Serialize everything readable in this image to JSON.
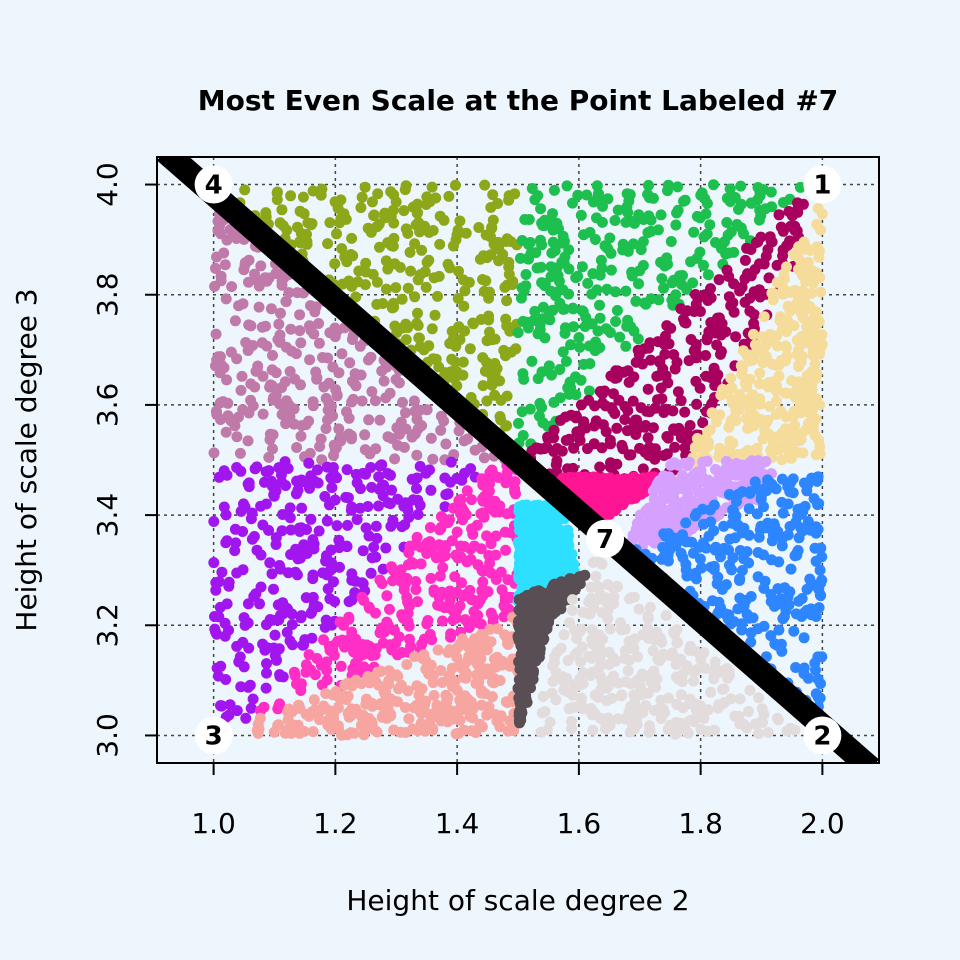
{
  "chart_data": {
    "type": "scatter",
    "title": "Most Even Scale at the Point Labeled #7",
    "xlabel": "Height of scale degree 2",
    "ylabel": "Height of scale degree 3",
    "xlim": [
      0.907,
      2.093
    ],
    "ylim": [
      2.95,
      4.05
    ],
    "x_ticks": [
      "1.0",
      "1.2",
      "1.4",
      "1.6",
      "1.8",
      "2.0"
    ],
    "x_tick_values": [
      1.0,
      1.2,
      1.4,
      1.6,
      1.8,
      2.0
    ],
    "y_ticks": [
      "3.0",
      "3.2",
      "3.4",
      "3.6",
      "3.8",
      "4.0"
    ],
    "y_tick_values": [
      3.0,
      3.2,
      3.4,
      3.6,
      3.8,
      4.0
    ],
    "grid": true,
    "diagonal_line": {
      "from": [
        0.92,
        4.06
      ],
      "to": [
        2.08,
        2.94
      ],
      "color": "#000000"
    },
    "labeled_points": [
      {
        "label": "1",
        "x": 2.0,
        "y": 4.0
      },
      {
        "label": "2",
        "x": 2.0,
        "y": 3.0
      },
      {
        "label": "3",
        "x": 1.0,
        "y": 3.0
      },
      {
        "label": "4",
        "x": 1.0,
        "y": 4.0
      },
      {
        "label": "7",
        "x": 1.643,
        "y": 3.357
      }
    ],
    "regions": [
      {
        "color": "#8ca81a",
        "polygon": [
          [
            1.0,
            4.0
          ],
          [
            1.5,
            4.0
          ],
          [
            1.5,
            3.5
          ]
        ]
      },
      {
        "color": "#1dbf4f",
        "polygon": [
          [
            1.5,
            4.0
          ],
          [
            1.98,
            4.0
          ],
          [
            1.5,
            3.5
          ]
        ]
      },
      {
        "color": "#a8005f",
        "polygon": [
          [
            1.98,
            4.0
          ],
          [
            1.5,
            3.5
          ],
          [
            1.58,
            3.45
          ],
          [
            1.75,
            3.45
          ],
          [
            1.98,
            3.9
          ]
        ]
      },
      {
        "color": "#f5dc9b",
        "polygon": [
          [
            2.0,
            3.98
          ],
          [
            2.0,
            3.5
          ],
          [
            1.8,
            3.5
          ],
          [
            1.75,
            3.45
          ]
        ]
      },
      {
        "color": "#ff1493",
        "polygon": [
          [
            1.57,
            3.47
          ],
          [
            1.75,
            3.47
          ],
          [
            1.62,
            3.38
          ],
          [
            1.56,
            3.43
          ]
        ]
      },
      {
        "color": "#d6a0ff",
        "polygon": [
          [
            1.75,
            3.5
          ],
          [
            1.93,
            3.5
          ],
          [
            1.9,
            3.43
          ],
          [
            1.7,
            3.33
          ],
          [
            1.67,
            3.33
          ],
          [
            1.7,
            3.4
          ]
        ]
      },
      {
        "color": "#2d86ff",
        "polygon": [
          [
            1.9,
            3.47
          ],
          [
            2.0,
            3.47
          ],
          [
            2.0,
            3.0
          ],
          [
            1.67,
            3.32
          ],
          [
            1.72,
            3.36
          ]
        ]
      },
      {
        "color": "#c07aaa",
        "polygon": [
          [
            1.0,
            3.98
          ],
          [
            1.0,
            3.5
          ],
          [
            1.5,
            3.5
          ]
        ]
      },
      {
        "color": "#a116ee",
        "polygon": [
          [
            1.0,
            3.5
          ],
          [
            1.47,
            3.5
          ],
          [
            1.35,
            3.38
          ],
          [
            1.05,
            3.02
          ],
          [
            1.0,
            3.02
          ]
        ]
      },
      {
        "color": "#ff2ec5",
        "polygon": [
          [
            1.47,
            3.5
          ],
          [
            1.5,
            3.5
          ],
          [
            1.5,
            3.22
          ],
          [
            1.05,
            3.02
          ],
          [
            1.35,
            3.38
          ]
        ]
      },
      {
        "color": "#2ee0ff",
        "polygon": [
          [
            1.5,
            3.42
          ],
          [
            1.57,
            3.42
          ],
          [
            1.6,
            3.3
          ],
          [
            1.5,
            3.24
          ]
        ]
      },
      {
        "color": "#f7a5a0",
        "polygon": [
          [
            1.05,
            3.02
          ],
          [
            1.5,
            3.22
          ],
          [
            1.5,
            3.0
          ],
          [
            1.05,
            3.0
          ]
        ]
      },
      {
        "color": "#584e54",
        "polygon": [
          [
            1.5,
            3.25
          ],
          [
            1.62,
            3.3
          ],
          [
            1.55,
            3.2
          ],
          [
            1.5,
            3.0
          ]
        ]
      },
      {
        "color": "#e2dcdc",
        "polygon": [
          [
            1.56,
            3.2
          ],
          [
            1.63,
            3.33
          ],
          [
            1.97,
            3.0
          ],
          [
            1.53,
            3.0
          ]
        ]
      }
    ],
    "points_per_region": 300
  }
}
